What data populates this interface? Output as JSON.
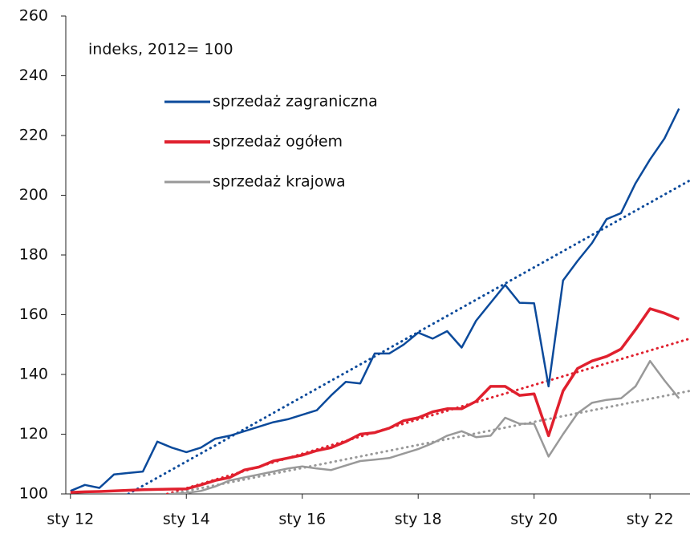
{
  "chart_data": {
    "type": "line",
    "annotation": "indeks, 2012= 100",
    "x": [
      2012,
      2012.25,
      2012.5,
      2012.75,
      2013,
      2013.25,
      2013.5,
      2013.75,
      2014,
      2014.25,
      2014.5,
      2014.75,
      2015,
      2015.25,
      2015.5,
      2015.75,
      2016,
      2016.25,
      2016.5,
      2016.75,
      2017,
      2017.25,
      2017.5,
      2017.75,
      2018,
      2018.25,
      2018.5,
      2018.75,
      2019,
      2019.25,
      2019.5,
      2019.75,
      2020,
      2020.25,
      2020.5,
      2020.75,
      2021,
      2021.25,
      2021.5,
      2021.75,
      2022,
      2022.25,
      2022.5
    ],
    "series": [
      {
        "name": "sprzedaż zagraniczna",
        "color": "#0b4a9b",
        "values": [
          101,
          103,
          102,
          106.5,
          107,
          107.5,
          117.5,
          115.5,
          114,
          115.5,
          118.5,
          119.5,
          121,
          122.5,
          124,
          125,
          126.5,
          128,
          133,
          137.5,
          137,
          147,
          147,
          150,
          154,
          152,
          154.5,
          149,
          158,
          164,
          170,
          164,
          163.8,
          136,
          171.5,
          178,
          184,
          192,
          194,
          204,
          212,
          219,
          229
        ]
      },
      {
        "name": "sprzedaż ogółem",
        "color": "#e0202e",
        "values": [
          100.5,
          100.7,
          100.8,
          101,
          101.2,
          101.4,
          101.5,
          101.6,
          101.7,
          103,
          104.5,
          105.5,
          108,
          109,
          111,
          112,
          113,
          114.5,
          115.5,
          117.5,
          120,
          120.5,
          122,
          124.5,
          125.5,
          127.5,
          128.5,
          128.5,
          131,
          136,
          136,
          133,
          133.5,
          119.5,
          134.5,
          142,
          144.5,
          146,
          148.5,
          155,
          162,
          160.5,
          158.5
        ]
      },
      {
        "name": "sprzedaż krajowa",
        "color": "#999999",
        "values": [
          null,
          null,
          null,
          null,
          null,
          null,
          null,
          100,
          100.3,
          101,
          102.5,
          104.5,
          105.5,
          106.5,
          107.5,
          108.5,
          109.2,
          108.5,
          108,
          109.5,
          111,
          111.5,
          112,
          113.5,
          115,
          117,
          119.5,
          121,
          119,
          119.5,
          125.5,
          123.5,
          123.5,
          112.5,
          120,
          127,
          130.5,
          131.5,
          132,
          136,
          144.5,
          138,
          132
        ]
      }
    ],
    "trendlines": [
      {
        "color": "#0b4a9b",
        "x": [
          2013,
          2022.69
        ],
        "values": [
          100,
          205
        ]
      },
      {
        "color": "#e0202e",
        "x": [
          2013.67,
          2022.69
        ],
        "values": [
          100,
          152
        ]
      },
      {
        "color": "#999999",
        "x": [
          2013.75,
          2022.69
        ],
        "values": [
          100,
          134.5
        ]
      }
    ],
    "xlim": [
      2011.92,
      2022.69
    ],
    "xticks": [
      {
        "value": 2012,
        "label": "sty 12"
      },
      {
        "value": 2014,
        "label": "sty 14"
      },
      {
        "value": 2016,
        "label": "sty 16"
      },
      {
        "value": 2018,
        "label": "sty 18"
      },
      {
        "value": 2020,
        "label": "sty 20"
      },
      {
        "value": 2022,
        "label": "sty 22"
      }
    ],
    "ylim": [
      100,
      260
    ],
    "yticks": [
      100,
      120,
      140,
      160,
      180,
      200,
      220,
      240,
      260
    ]
  }
}
